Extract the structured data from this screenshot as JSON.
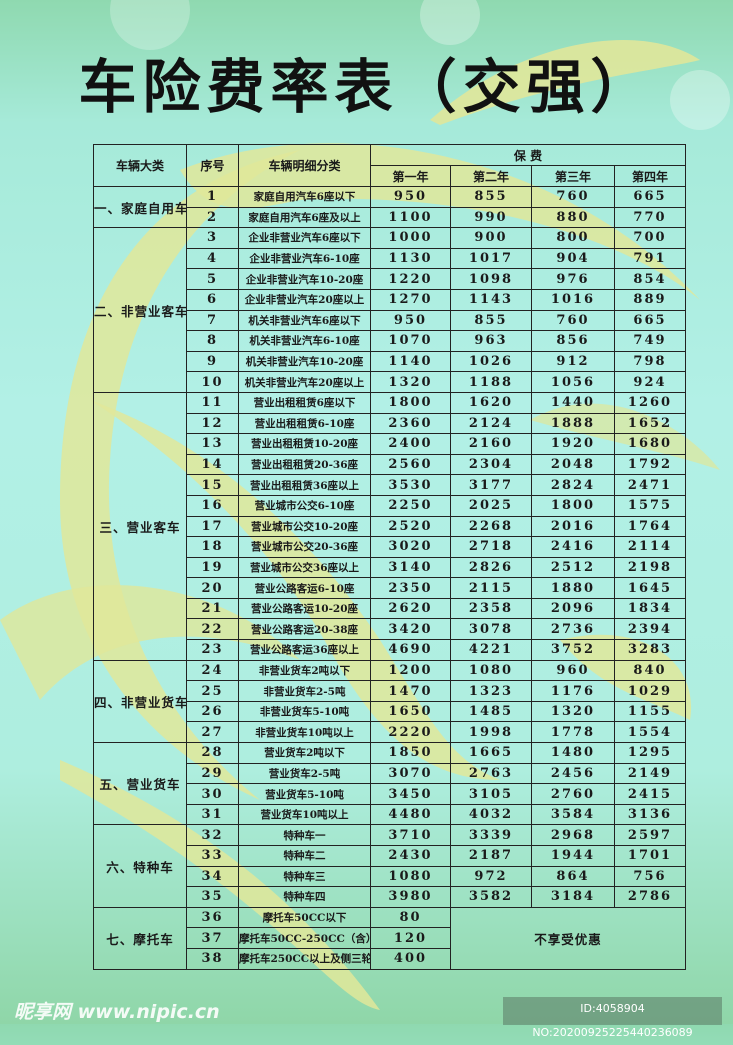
{
  "title": "车险费率表（交强）",
  "table": {
    "headers": {
      "category": "车辆大类",
      "no": "序号",
      "detail": "车辆明细分类",
      "premium": "保  费",
      "years": [
        "第一年",
        "第二年",
        "第三年",
        "第四年"
      ]
    },
    "no_discount_note": "不享受优惠",
    "categories": [
      {
        "name": "一、家庭自用车",
        "rows": [
          {
            "no": "1",
            "detail": "家庭自用汽车6座以下",
            "prices": [
              "950",
              "855",
              "760",
              "665"
            ]
          },
          {
            "no": "2",
            "detail": "家庭自用汽车6座及以上",
            "prices": [
              "1100",
              "990",
              "880",
              "770"
            ]
          }
        ]
      },
      {
        "name": "二、非营业客车",
        "rows": [
          {
            "no": "3",
            "detail": "企业非营业汽车6座以下",
            "prices": [
              "1000",
              "900",
              "800",
              "700"
            ]
          },
          {
            "no": "4",
            "detail": "企业非营业汽车6-10座",
            "prices": [
              "1130",
              "1017",
              "904",
              "791"
            ]
          },
          {
            "no": "5",
            "detail": "企业非营业汽车10-20座",
            "prices": [
              "1220",
              "1098",
              "976",
              "854"
            ]
          },
          {
            "no": "6",
            "detail": "企业非营业汽车20座以上",
            "prices": [
              "1270",
              "1143",
              "1016",
              "889"
            ]
          },
          {
            "no": "7",
            "detail": "机关非营业汽车6座以下",
            "prices": [
              "950",
              "855",
              "760",
              "665"
            ]
          },
          {
            "no": "8",
            "detail": "机关非营业汽车6-10座",
            "prices": [
              "1070",
              "963",
              "856",
              "749"
            ]
          },
          {
            "no": "9",
            "detail": "机关非营业汽车10-20座",
            "prices": [
              "1140",
              "1026",
              "912",
              "798"
            ]
          },
          {
            "no": "10",
            "detail": "机关非营业汽车20座以上",
            "prices": [
              "1320",
              "1188",
              "1056",
              "924"
            ]
          }
        ]
      },
      {
        "name": "三、营业客车",
        "rows": [
          {
            "no": "11",
            "detail": "营业出租租赁6座以下",
            "prices": [
              "1800",
              "1620",
              "1440",
              "1260"
            ]
          },
          {
            "no": "12",
            "detail": "营业出租租赁6-10座",
            "prices": [
              "2360",
              "2124",
              "1888",
              "1652"
            ]
          },
          {
            "no": "13",
            "detail": "营业出租租赁10-20座",
            "prices": [
              "2400",
              "2160",
              "1920",
              "1680"
            ]
          },
          {
            "no": "14",
            "detail": "营业出租租赁20-36座",
            "prices": [
              "2560",
              "2304",
              "2048",
              "1792"
            ]
          },
          {
            "no": "15",
            "detail": "营业出租租赁36座以上",
            "prices": [
              "3530",
              "3177",
              "2824",
              "2471"
            ]
          },
          {
            "no": "16",
            "detail": "营业城市公交6-10座",
            "prices": [
              "2250",
              "2025",
              "1800",
              "1575"
            ]
          },
          {
            "no": "17",
            "detail": "营业城市公交10-20座",
            "prices": [
              "2520",
              "2268",
              "2016",
              "1764"
            ]
          },
          {
            "no": "18",
            "detail": "营业城市公交20-36座",
            "prices": [
              "3020",
              "2718",
              "2416",
              "2114"
            ]
          },
          {
            "no": "19",
            "detail": "营业城市公交36座以上",
            "prices": [
              "3140",
              "2826",
              "2512",
              "2198"
            ]
          },
          {
            "no": "20",
            "detail": "营业公路客运6-10座",
            "prices": [
              "2350",
              "2115",
              "1880",
              "1645"
            ]
          },
          {
            "no": "21",
            "detail": "营业公路客运10-20座",
            "prices": [
              "2620",
              "2358",
              "2096",
              "1834"
            ]
          },
          {
            "no": "22",
            "detail": "营业公路客运20-38座",
            "prices": [
              "3420",
              "3078",
              "2736",
              "2394"
            ]
          },
          {
            "no": "23",
            "detail": "营业公路客运36座以上",
            "prices": [
              "4690",
              "4221",
              "3752",
              "3283"
            ]
          }
        ]
      },
      {
        "name": "四、非营业货车",
        "rows": [
          {
            "no": "24",
            "detail": "非营业货车2吨以下",
            "prices": [
              "1200",
              "1080",
              "960",
              "840"
            ]
          },
          {
            "no": "25",
            "detail": "非营业货车2-5吨",
            "prices": [
              "1470",
              "1323",
              "1176",
              "1029"
            ]
          },
          {
            "no": "26",
            "detail": "非营业货车5-10吨",
            "prices": [
              "1650",
              "1485",
              "1320",
              "1155"
            ]
          },
          {
            "no": "27",
            "detail": "非营业货车10吨以上",
            "prices": [
              "2220",
              "1998",
              "1778",
              "1554"
            ]
          }
        ]
      },
      {
        "name": "五、营业货车",
        "rows": [
          {
            "no": "28",
            "detail": "营业货车2吨以下",
            "prices": [
              "1850",
              "1665",
              "1480",
              "1295"
            ]
          },
          {
            "no": "29",
            "detail": "营业货车2-5吨",
            "prices": [
              "3070",
              "2763",
              "2456",
              "2149"
            ]
          },
          {
            "no": "30",
            "detail": "营业货车5-10吨",
            "prices": [
              "3450",
              "3105",
              "2760",
              "2415"
            ]
          },
          {
            "no": "31",
            "detail": "营业货车10吨以上",
            "prices": [
              "4480",
              "4032",
              "3584",
              "3136"
            ]
          }
        ]
      },
      {
        "name": "六、特种车",
        "rows": [
          {
            "no": "32",
            "detail": "特种车一",
            "prices": [
              "3710",
              "3339",
              "2968",
              "2597"
            ]
          },
          {
            "no": "33",
            "detail": "特种车二",
            "prices": [
              "2430",
              "2187",
              "1944",
              "1701"
            ]
          },
          {
            "no": "34",
            "detail": "特种车三",
            "prices": [
              "1080",
              "972",
              "864",
              "756"
            ]
          },
          {
            "no": "35",
            "detail": "特种车四",
            "prices": [
              "3980",
              "3582",
              "3184",
              "2786"
            ]
          }
        ]
      },
      {
        "name": "七、摩托车",
        "no_discount": true,
        "rows": [
          {
            "no": "36",
            "detail": "摩托车50CC以下",
            "prices": [
              "80"
            ]
          },
          {
            "no": "37",
            "detail": "摩托车50CC-250CC（含）",
            "prices": [
              "120"
            ]
          },
          {
            "no": "38",
            "detail": "摩托车250CC以上及侧三轮",
            "prices": [
              "400"
            ]
          }
        ]
      }
    ]
  },
  "watermark": {
    "logo": "昵享网 www.nipic.cn",
    "id": "ID:4058904 NO:20200925225440236089"
  },
  "colors": {
    "background": "#b2f0e6",
    "swirl": "#e0e79a",
    "text": "#1a1a1a"
  }
}
